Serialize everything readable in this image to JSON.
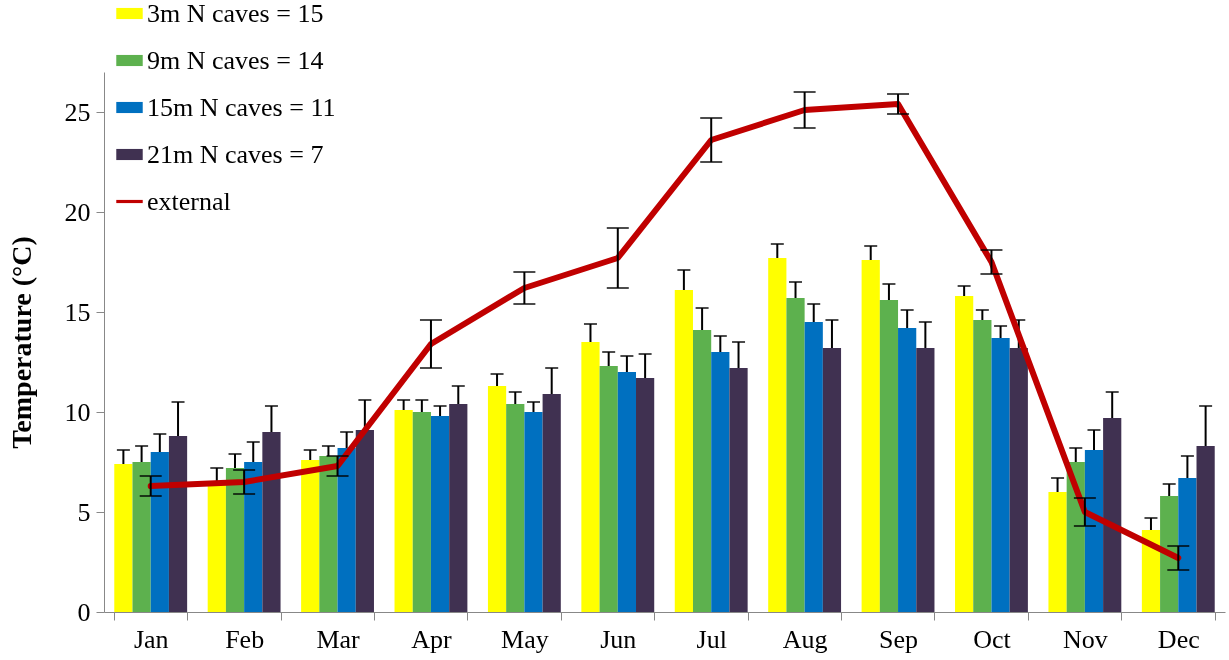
{
  "chart_data": {
    "type": "bar",
    "ylabel": "Temperature (°C)",
    "categories": [
      "Jan",
      "Feb",
      "Mar",
      "Apr",
      "May",
      "Jun",
      "Jul",
      "Aug",
      "Sep",
      "Oct",
      "Nov",
      "Dec"
    ],
    "ylim": [
      0,
      27
    ],
    "yticks": [
      0,
      5,
      10,
      15,
      20,
      25
    ],
    "legend": "top left",
    "series": [
      {
        "name": "3m N caves = 15",
        "color": "#ffff00",
        "values": [
          7.4,
          6.4,
          7.6,
          10.1,
          11.3,
          13.5,
          16.1,
          17.7,
          17.6,
          15.8,
          6.0,
          4.1
        ],
        "errors": [
          [
            7.4,
            8.1
          ],
          [
            6.4,
            7.2
          ],
          [
            7.6,
            8.1
          ],
          [
            10.1,
            10.6
          ],
          [
            11.3,
            11.9
          ],
          [
            13.5,
            14.4
          ],
          [
            16.1,
            17.1
          ],
          [
            17.7,
            18.4
          ],
          [
            17.6,
            18.3
          ],
          [
            15.8,
            16.3
          ],
          [
            6.0,
            6.7
          ],
          [
            4.1,
            4.7
          ]
        ]
      },
      {
        "name": "9m N caves = 14",
        "color": "#5db14e",
        "values": [
          7.5,
          7.2,
          7.8,
          10.0,
          10.4,
          12.3,
          14.1,
          15.7,
          15.6,
          14.6,
          7.5,
          5.8
        ],
        "errors": [
          [
            7.5,
            8.3
          ],
          [
            7.2,
            7.9
          ],
          [
            7.8,
            8.3
          ],
          [
            10.0,
            10.6
          ],
          [
            10.4,
            11.0
          ],
          [
            12.3,
            13.0
          ],
          [
            14.1,
            15.2
          ],
          [
            15.7,
            16.5
          ],
          [
            15.6,
            16.4
          ],
          [
            14.6,
            15.1
          ],
          [
            7.5,
            8.2
          ],
          [
            5.8,
            6.4
          ]
        ]
      },
      {
        "name": "15m N caves = 11",
        "color": "#0070c0",
        "values": [
          8.0,
          7.5,
          8.2,
          9.8,
          10.0,
          12.0,
          13.0,
          14.5,
          14.2,
          13.7,
          8.1,
          6.7
        ],
        "errors": [
          [
            8.0,
            8.9
          ],
          [
            7.5,
            8.5
          ],
          [
            8.2,
            9.0
          ],
          [
            9.8,
            10.3
          ],
          [
            10.0,
            10.5
          ],
          [
            12.0,
            12.8
          ],
          [
            13.0,
            13.8
          ],
          [
            14.5,
            15.4
          ],
          [
            14.2,
            15.1
          ],
          [
            13.7,
            14.3
          ],
          [
            8.1,
            9.1
          ],
          [
            6.7,
            7.8
          ]
        ]
      },
      {
        "name": "21m N caves = 7",
        "color": "#403151",
        "values": [
          8.8,
          9.0,
          9.1,
          10.4,
          10.9,
          11.7,
          12.2,
          13.2,
          13.2,
          13.2,
          9.7,
          8.3
        ],
        "errors": [
          [
            8.8,
            10.5
          ],
          [
            9.0,
            10.3
          ],
          [
            9.1,
            10.6
          ],
          [
            10.4,
            11.3
          ],
          [
            10.9,
            12.2
          ],
          [
            11.7,
            12.9
          ],
          [
            12.2,
            13.5
          ],
          [
            13.2,
            14.6
          ],
          [
            13.2,
            14.5
          ],
          [
            13.2,
            14.6
          ],
          [
            9.7,
            11.0
          ],
          [
            8.3,
            10.3
          ]
        ]
      },
      {
        "name": "external",
        "type": "line",
        "color": "#c00000",
        "values": [
          6.3,
          6.5,
          7.3,
          13.4,
          16.2,
          17.7,
          23.6,
          25.1,
          25.4,
          17.5,
          5.0,
          2.7
        ],
        "errors": [
          0.5,
          0.6,
          0.5,
          1.2,
          0.8,
          1.5,
          1.1,
          0.9,
          0.5,
          0.6,
          0.7,
          0.6
        ]
      }
    ]
  }
}
